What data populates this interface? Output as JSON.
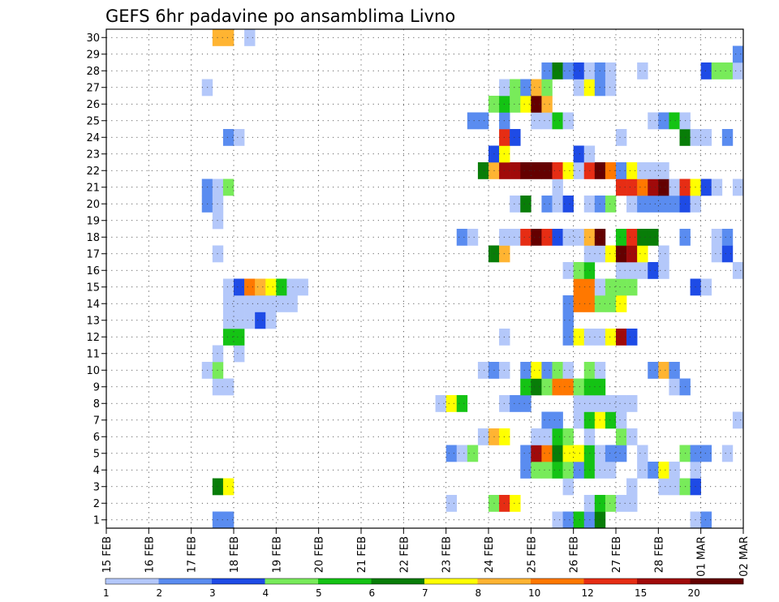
{
  "chart_data": {
    "type": "heatmap",
    "title": "GEFS 6hr padavine po ansamblima Livno",
    "xlabel": "",
    "ylabel": "",
    "x_ticks": [
      "15 FEB",
      "16 FEB",
      "17 FEB",
      "18 FEB",
      "19 FEB",
      "20 FEB",
      "21 FEB",
      "22 FEB",
      "23 FEB",
      "24 FEB",
      "25 FEB",
      "26 FEB",
      "27 FEB",
      "28 FEB",
      "01 MAR",
      "02 MAR"
    ],
    "y_ticks": [
      "1",
      "2",
      "3",
      "4",
      "5",
      "6",
      "7",
      "8",
      "9",
      "10",
      "11",
      "12",
      "13",
      "14",
      "15",
      "16",
      "17",
      "18",
      "19",
      "20",
      "21",
      "22",
      "23",
      "24",
      "25",
      "26",
      "27",
      "28",
      "29",
      "30"
    ],
    "time_steps_per_day": 4,
    "xlim": [
      0,
      60
    ],
    "ylim": [
      0.5,
      30.5
    ],
    "grid": true,
    "colorbar": {
      "position": "bottom",
      "labels": [
        "1",
        "2",
        "3",
        "4",
        "5",
        "6",
        "7",
        "8",
        "10",
        "12",
        "15",
        "20"
      ],
      "colors": [
        "#b4c8fa",
        "#5a8cf0",
        "#1e4be6",
        "#78eb5a",
        "#14c314",
        "#087d08",
        "#ffff00",
        "#ffb432",
        "#ff7800",
        "#e62d14",
        "#a00a0a",
        "#640000"
      ]
    },
    "cells": [
      [
        1,
        11,
        2
      ],
      [
        1,
        12,
        2
      ],
      [
        1,
        43,
        1
      ],
      [
        1,
        44,
        2
      ],
      [
        1,
        45,
        5
      ],
      [
        1,
        46,
        2
      ],
      [
        1,
        47,
        6
      ],
      [
        1,
        56,
        1
      ],
      [
        1,
        57,
        2
      ],
      [
        2,
        33,
        1
      ],
      [
        2,
        37,
        4
      ],
      [
        2,
        38,
        10
      ],
      [
        2,
        39,
        7
      ],
      [
        2,
        46,
        1
      ],
      [
        2,
        47,
        5
      ],
      [
        2,
        48,
        4
      ],
      [
        2,
        49,
        1
      ],
      [
        2,
        50,
        1
      ],
      [
        3,
        11,
        6
      ],
      [
        3,
        12,
        7
      ],
      [
        3,
        44,
        1
      ],
      [
        3,
        50,
        1
      ],
      [
        3,
        53,
        1
      ],
      [
        3,
        54,
        1
      ],
      [
        3,
        55,
        4
      ],
      [
        3,
        56,
        3
      ],
      [
        4,
        40,
        2
      ],
      [
        4,
        41,
        4
      ],
      [
        4,
        42,
        4
      ],
      [
        4,
        43,
        5
      ],
      [
        4,
        44,
        4
      ],
      [
        4,
        45,
        2
      ],
      [
        4,
        46,
        5
      ],
      [
        4,
        47,
        1
      ],
      [
        4,
        48,
        1
      ],
      [
        4,
        51,
        1
      ],
      [
        4,
        52,
        2
      ],
      [
        4,
        53,
        7
      ],
      [
        4,
        54,
        1
      ],
      [
        4,
        56,
        1
      ],
      [
        5,
        33,
        2
      ],
      [
        5,
        34,
        1
      ],
      [
        5,
        35,
        4
      ],
      [
        5,
        40,
        2
      ],
      [
        5,
        41,
        11
      ],
      [
        5,
        42,
        9
      ],
      [
        5,
        43,
        6
      ],
      [
        5,
        44,
        7
      ],
      [
        5,
        45,
        7
      ],
      [
        5,
        46,
        5
      ],
      [
        5,
        47,
        1
      ],
      [
        5,
        48,
        2
      ],
      [
        5,
        49,
        2
      ],
      [
        5,
        51,
        1
      ],
      [
        5,
        55,
        4
      ],
      [
        5,
        56,
        2
      ],
      [
        5,
        57,
        2
      ],
      [
        5,
        59,
        1
      ],
      [
        6,
        36,
        1
      ],
      [
        6,
        37,
        8
      ],
      [
        6,
        38,
        7
      ],
      [
        6,
        41,
        1
      ],
      [
        6,
        42,
        1
      ],
      [
        6,
        43,
        5
      ],
      [
        6,
        44,
        4
      ],
      [
        6,
        46,
        1
      ],
      [
        6,
        49,
        4
      ],
      [
        6,
        50,
        1
      ],
      [
        7,
        42,
        2
      ],
      [
        7,
        43,
        2
      ],
      [
        7,
        45,
        1
      ],
      [
        7,
        46,
        5
      ],
      [
        7,
        47,
        7
      ],
      [
        7,
        48,
        5
      ],
      [
        7,
        49,
        1
      ],
      [
        7,
        60,
        1
      ],
      [
        8,
        32,
        1
      ],
      [
        8,
        33,
        7
      ],
      [
        8,
        34,
        5
      ],
      [
        8,
        38,
        1
      ],
      [
        8,
        39,
        2
      ],
      [
        8,
        40,
        2
      ],
      [
        8,
        45,
        1
      ],
      [
        8,
        46,
        1
      ],
      [
        8,
        47,
        1
      ],
      [
        8,
        48,
        1
      ],
      [
        8,
        49,
        1
      ],
      [
        8,
        50,
        1
      ],
      [
        9,
        11,
        1
      ],
      [
        9,
        12,
        1
      ],
      [
        9,
        40,
        5
      ],
      [
        9,
        41,
        6
      ],
      [
        9,
        42,
        4
      ],
      [
        9,
        43,
        9
      ],
      [
        9,
        44,
        9
      ],
      [
        9,
        45,
        4
      ],
      [
        9,
        46,
        5
      ],
      [
        9,
        47,
        5
      ],
      [
        9,
        54,
        1
      ],
      [
        9,
        55,
        2
      ],
      [
        10,
        10,
        1
      ],
      [
        10,
        11,
        4
      ],
      [
        10,
        36,
        1
      ],
      [
        10,
        37,
        2
      ],
      [
        10,
        38,
        1
      ],
      [
        10,
        40,
        2
      ],
      [
        10,
        41,
        7
      ],
      [
        10,
        42,
        2
      ],
      [
        10,
        43,
        4
      ],
      [
        10,
        44,
        1
      ],
      [
        10,
        46,
        4
      ],
      [
        10,
        47,
        1
      ],
      [
        10,
        52,
        2
      ],
      [
        10,
        53,
        8
      ],
      [
        10,
        54,
        2
      ],
      [
        11,
        11,
        1
      ],
      [
        11,
        13,
        1
      ],
      [
        12,
        12,
        5
      ],
      [
        12,
        13,
        5
      ],
      [
        12,
        38,
        1
      ],
      [
        12,
        44,
        2
      ],
      [
        12,
        45,
        7
      ],
      [
        12,
        46,
        1
      ],
      [
        12,
        47,
        1
      ],
      [
        12,
        48,
        7
      ],
      [
        12,
        49,
        11
      ],
      [
        12,
        50,
        3
      ],
      [
        13,
        12,
        1
      ],
      [
        13,
        13,
        1
      ],
      [
        13,
        14,
        1
      ],
      [
        13,
        15,
        3
      ],
      [
        13,
        16,
        1
      ],
      [
        13,
        44,
        2
      ],
      [
        14,
        12,
        1
      ],
      [
        14,
        13,
        1
      ],
      [
        14,
        14,
        1
      ],
      [
        14,
        15,
        1
      ],
      [
        14,
        16,
        1
      ],
      [
        14,
        17,
        1
      ],
      [
        14,
        18,
        1
      ],
      [
        14,
        44,
        2
      ],
      [
        14,
        45,
        9
      ],
      [
        14,
        46,
        9
      ],
      [
        14,
        47,
        4
      ],
      [
        14,
        48,
        4
      ],
      [
        14,
        49,
        7
      ],
      [
        15,
        12,
        1
      ],
      [
        15,
        13,
        3
      ],
      [
        15,
        14,
        9
      ],
      [
        15,
        15,
        8
      ],
      [
        15,
        16,
        7
      ],
      [
        15,
        17,
        5
      ],
      [
        15,
        18,
        1
      ],
      [
        15,
        19,
        1
      ],
      [
        15,
        45,
        9
      ],
      [
        15,
        46,
        9
      ],
      [
        15,
        47,
        1
      ],
      [
        15,
        48,
        4
      ],
      [
        15,
        49,
        4
      ],
      [
        15,
        50,
        4
      ],
      [
        15,
        56,
        3
      ],
      [
        15,
        57,
        1
      ],
      [
        16,
        44,
        1
      ],
      [
        16,
        45,
        4
      ],
      [
        16,
        46,
        5
      ],
      [
        16,
        49,
        1
      ],
      [
        16,
        50,
        1
      ],
      [
        16,
        51,
        1
      ],
      [
        16,
        52,
        3
      ],
      [
        16,
        53,
        1
      ],
      [
        16,
        60,
        1
      ],
      [
        17,
        11,
        1
      ],
      [
        17,
        37,
        6
      ],
      [
        17,
        38,
        8
      ],
      [
        17,
        46,
        1
      ],
      [
        17,
        47,
        1
      ],
      [
        17,
        48,
        7
      ],
      [
        17,
        49,
        12
      ],
      [
        17,
        50,
        11
      ],
      [
        17,
        51,
        7
      ],
      [
        17,
        53,
        1
      ],
      [
        17,
        58,
        1
      ],
      [
        17,
        59,
        3
      ],
      [
        18,
        34,
        2
      ],
      [
        18,
        35,
        1
      ],
      [
        18,
        38,
        1
      ],
      [
        18,
        39,
        1
      ],
      [
        18,
        40,
        10
      ],
      [
        18,
        41,
        12
      ],
      [
        18,
        42,
        10
      ],
      [
        18,
        43,
        3
      ],
      [
        18,
        44,
        1
      ],
      [
        18,
        45,
        1
      ],
      [
        18,
        46,
        8
      ],
      [
        18,
        47,
        12
      ],
      [
        18,
        49,
        5
      ],
      [
        18,
        50,
        10
      ],
      [
        18,
        51,
        6
      ],
      [
        18,
        52,
        6
      ],
      [
        18,
        55,
        2
      ],
      [
        18,
        58,
        1
      ],
      [
        18,
        59,
        2
      ],
      [
        19,
        11,
        1
      ],
      [
        20,
        10,
        2
      ],
      [
        20,
        11,
        1
      ],
      [
        20,
        39,
        1
      ],
      [
        20,
        40,
        6
      ],
      [
        20,
        42,
        2
      ],
      [
        20,
        43,
        1
      ],
      [
        20,
        44,
        3
      ],
      [
        20,
        46,
        1
      ],
      [
        20,
        47,
        2
      ],
      [
        20,
        48,
        4
      ],
      [
        20,
        50,
        1
      ],
      [
        20,
        51,
        2
      ],
      [
        20,
        52,
        2
      ],
      [
        20,
        53,
        2
      ],
      [
        20,
        54,
        2
      ],
      [
        20,
        55,
        3
      ],
      [
        20,
        56,
        1
      ],
      [
        21,
        10,
        2
      ],
      [
        21,
        11,
        1
      ],
      [
        21,
        12,
        4
      ],
      [
        21,
        43,
        1
      ],
      [
        21,
        49,
        10
      ],
      [
        21,
        50,
        10
      ],
      [
        21,
        51,
        9
      ],
      [
        21,
        52,
        11
      ],
      [
        21,
        53,
        12
      ],
      [
        21,
        54,
        1
      ],
      [
        21,
        55,
        10
      ],
      [
        21,
        56,
        7
      ],
      [
        21,
        57,
        3
      ],
      [
        21,
        58,
        1
      ],
      [
        21,
        60,
        1
      ],
      [
        22,
        36,
        6
      ],
      [
        22,
        37,
        8
      ],
      [
        22,
        38,
        11
      ],
      [
        22,
        39,
        11
      ],
      [
        22,
        40,
        12
      ],
      [
        22,
        41,
        12
      ],
      [
        22,
        42,
        12
      ],
      [
        22,
        43,
        10
      ],
      [
        22,
        44,
        7
      ],
      [
        22,
        45,
        1
      ],
      [
        22,
        46,
        10
      ],
      [
        22,
        47,
        12
      ],
      [
        22,
        48,
        9
      ],
      [
        22,
        49,
        2
      ],
      [
        22,
        50,
        7
      ],
      [
        22,
        51,
        1
      ],
      [
        22,
        52,
        1
      ],
      [
        22,
        53,
        1
      ],
      [
        23,
        37,
        3
      ],
      [
        23,
        38,
        7
      ],
      [
        23,
        45,
        3
      ],
      [
        23,
        46,
        1
      ],
      [
        24,
        12,
        2
      ],
      [
        24,
        13,
        1
      ],
      [
        24,
        38,
        10
      ],
      [
        24,
        39,
        3
      ],
      [
        24,
        49,
        1
      ],
      [
        24,
        55,
        6
      ],
      [
        24,
        56,
        1
      ],
      [
        24,
        57,
        1
      ],
      [
        24,
        59,
        2
      ],
      [
        25,
        35,
        2
      ],
      [
        25,
        36,
        2
      ],
      [
        25,
        38,
        2
      ],
      [
        25,
        41,
        1
      ],
      [
        25,
        42,
        1
      ],
      [
        25,
        43,
        5
      ],
      [
        25,
        44,
        1
      ],
      [
        25,
        52,
        1
      ],
      [
        25,
        53,
        2
      ],
      [
        25,
        54,
        5
      ],
      [
        25,
        55,
        1
      ],
      [
        26,
        37,
        4
      ],
      [
        26,
        38,
        5
      ],
      [
        26,
        39,
        4
      ],
      [
        26,
        40,
        7
      ],
      [
        26,
        41,
        12
      ],
      [
        26,
        42,
        8
      ],
      [
        27,
        10,
        1
      ],
      [
        27,
        38,
        1
      ],
      [
        27,
        39,
        4
      ],
      [
        27,
        40,
        2
      ],
      [
        27,
        41,
        8
      ],
      [
        27,
        42,
        4
      ],
      [
        27,
        45,
        1
      ],
      [
        27,
        46,
        7
      ],
      [
        27,
        47,
        2
      ],
      [
        27,
        48,
        1
      ],
      [
        28,
        42,
        2
      ],
      [
        28,
        43,
        6
      ],
      [
        28,
        44,
        2
      ],
      [
        28,
        45,
        3
      ],
      [
        28,
        46,
        1
      ],
      [
        28,
        47,
        2
      ],
      [
        28,
        48,
        1
      ],
      [
        28,
        51,
        1
      ],
      [
        28,
        57,
        3
      ],
      [
        28,
        58,
        4
      ],
      [
        28,
        59,
        4
      ],
      [
        28,
        60,
        1
      ],
      [
        29,
        60,
        2
      ],
      [
        30,
        11,
        8
      ],
      [
        30,
        12,
        8
      ],
      [
        30,
        14,
        1
      ]
    ]
  }
}
